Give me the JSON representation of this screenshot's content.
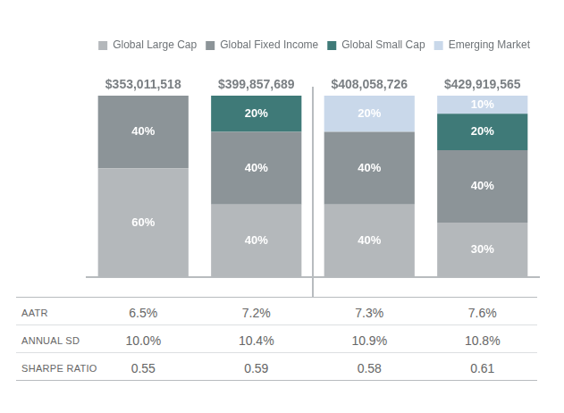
{
  "chart_data": {
    "type": "bar",
    "stacked": true,
    "tick_labels": false,
    "legend": "top-right",
    "data_labels": true,
    "categories": [
      null,
      null,
      null,
      null
    ],
    "ylim": [
      0,
      100
    ],
    "series": [
      {
        "name": "Global Large Cap",
        "color": "#b4b8bb",
        "values": [
          60,
          40,
          40,
          30
        ],
        "value_labels": [
          "60%",
          "40%",
          "40%",
          "30%"
        ]
      },
      {
        "name": "Global Fixed Income",
        "color": "#8c9498",
        "values": [
          40,
          40,
          40,
          40
        ],
        "value_labels": [
          "40%",
          "40%",
          "40%",
          "40%"
        ]
      },
      {
        "name": "Global Small Cap",
        "color": "#3f7a78",
        "values": [
          null,
          20,
          null,
          20
        ],
        "value_labels": [
          null,
          "20%",
          null,
          "20%"
        ]
      },
      {
        "name": "Emerging Market",
        "color": "#c9d8ea",
        "values": [
          null,
          null,
          20,
          10
        ],
        "value_labels": [
          null,
          null,
          "20%",
          "10%"
        ]
      }
    ],
    "bar_totals": {
      "values": [
        353011518,
        399857689,
        408058726,
        429919565
      ],
      "value_labels": [
        "$353,011,518",
        "$399,857,689",
        "$408,058,726",
        "$429,919,565"
      ]
    },
    "table": {
      "rows": [
        {
          "label": "AATR",
          "values": [
            6.5,
            7.2,
            7.3,
            7.6
          ],
          "value_labels": [
            "6.5%",
            "7.2%",
            "7.3%",
            "7.6%"
          ]
        },
        {
          "label": "ANNUAL SD",
          "values": [
            10.0,
            10.4,
            10.9,
            10.8
          ],
          "value_labels": [
            "10.0%",
            "10.4%",
            "10.9%",
            "10.8%"
          ]
        },
        {
          "label": "SHARPE RATIO",
          "values": [
            0.55,
            0.59,
            0.58,
            0.61
          ]
        }
      ]
    }
  }
}
